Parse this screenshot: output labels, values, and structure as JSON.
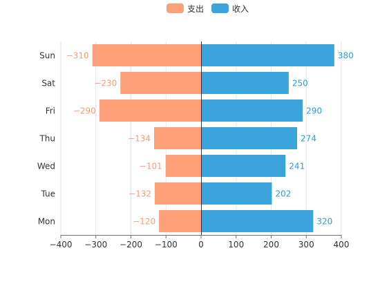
{
  "chart_data": {
    "type": "bar",
    "orientation": "horizontal",
    "stacked": true,
    "categories": [
      "Mon",
      "Tue",
      "Wed",
      "Thu",
      "Fri",
      "Sat",
      "Sun"
    ],
    "series": [
      {
        "name": "支出",
        "values": [
          -120,
          -132,
          -101,
          -134,
          -290,
          -230,
          -310
        ],
        "color": "#FFA07A",
        "label_color": "#FF9874"
      },
      {
        "name": "收入",
        "values": [
          320,
          202,
          241,
          274,
          290,
          250,
          380
        ],
        "color": "#3BA4DB",
        "label_color": "#2D9BD6"
      }
    ],
    "data_labels": {
      "支出": [
        "−120",
        "−132",
        "−101",
        "−134",
        "−290",
        "−230",
        "−310"
      ],
      "收入": [
        "320",
        "202",
        "241",
        "274",
        "290",
        "250",
        "380"
      ]
    },
    "xlim": [
      -400,
      400
    ],
    "x_ticks": [
      -400,
      -300,
      -200,
      -100,
      0,
      100,
      200,
      300,
      400
    ],
    "x_tick_labels": [
      "−400",
      "−300",
      "−200",
      "−100",
      "0",
      "100",
      "200",
      "300",
      "400"
    ],
    "grid": true,
    "legend_position": "top-center",
    "title": "",
    "xlabel": "",
    "ylabel": ""
  }
}
